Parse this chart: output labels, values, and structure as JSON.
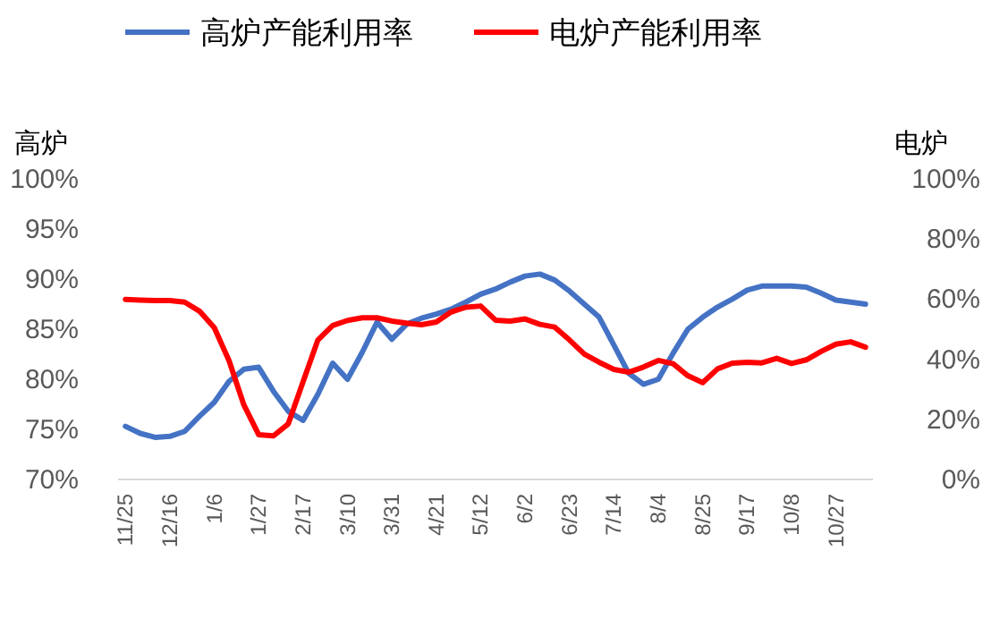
{
  "chart_data": {
    "type": "line",
    "ylabel": "高炉",
    "y2label": "电炉",
    "legend": "top",
    "grid": false,
    "line_style": "solid",
    "marker": "none",
    "categories": [
      "11/25",
      null,
      null,
      "12/16",
      null,
      null,
      "1/6",
      null,
      null,
      "1/27",
      null,
      null,
      "2/17",
      null,
      null,
      "3/10",
      null,
      null,
      "3/31",
      null,
      null,
      "4/21",
      null,
      null,
      "5/12",
      null,
      null,
      "6/2",
      null,
      null,
      "6/23",
      null,
      null,
      "7/14",
      null,
      null,
      "8/4",
      null,
      null,
      "8/25",
      null,
      null,
      "9/17",
      null,
      null,
      "10/8",
      null,
      null,
      "10/27",
      null,
      null
    ],
    "ylim": [
      70,
      100
    ],
    "yticks": [
      {
        "value": 70,
        "label": "70%"
      },
      {
        "value": 75,
        "label": "75%"
      },
      {
        "value": 80,
        "label": "80%"
      },
      {
        "value": 85,
        "label": "85%"
      },
      {
        "value": 90,
        "label": "90%"
      },
      {
        "value": 95,
        "label": "95%"
      },
      {
        "value": 100,
        "label": "100%"
      }
    ],
    "y2lim": [
      0,
      100
    ],
    "y2ticks": [
      {
        "value": 0,
        "label": "0%"
      },
      {
        "value": 20,
        "label": "20%"
      },
      {
        "value": 40,
        "label": "40%"
      },
      {
        "value": 60,
        "label": "60%"
      },
      {
        "value": 80,
        "label": "80%"
      },
      {
        "value": 100,
        "label": "100%"
      }
    ],
    "series": [
      {
        "name": "高炉产能利用率",
        "color": "#4472c4",
        "values": [
          75.3,
          74.6,
          74.2,
          74.3,
          74.8,
          76.3,
          77.7,
          79.8,
          81,
          81.2,
          78.8,
          76.8,
          75.9,
          78.5,
          81.6,
          80,
          82.7,
          85.7,
          84,
          85.5,
          86.1,
          86.5,
          87,
          87.7,
          88.5,
          89,
          89.7,
          90.3,
          90.5,
          89.9,
          88.8,
          87.5,
          86.2,
          83.4,
          80.6,
          79.5,
          80,
          82.6,
          85,
          86.2,
          87.2,
          88,
          88.9,
          89.3,
          89.3,
          89.3,
          89.2,
          88.6,
          87.9,
          87.7,
          87.5
        ]
      },
      {
        "name": "电炉产能利用率",
        "color": "#ff0000",
        "axis": "y2",
        "values": [
          59.9,
          59.7,
          59.5,
          59.5,
          59,
          56,
          50.5,
          39.5,
          24.8,
          14.9,
          14.5,
          18.5,
          32.5,
          46.4,
          51.2,
          52.9,
          53.8,
          53.8,
          52.7,
          52,
          51.5,
          52.4,
          55.7,
          57.3,
          57.7,
          53,
          52.7,
          53.4,
          51.6,
          50.7,
          46.4,
          41.7,
          39,
          36.6,
          35.7,
          37.4,
          39.6,
          38.5,
          34.5,
          32.2,
          36.8,
          38.7,
          39,
          38.8,
          40.3,
          38.6,
          39.8,
          42.6,
          45,
          45.8,
          44
        ]
      }
    ]
  }
}
